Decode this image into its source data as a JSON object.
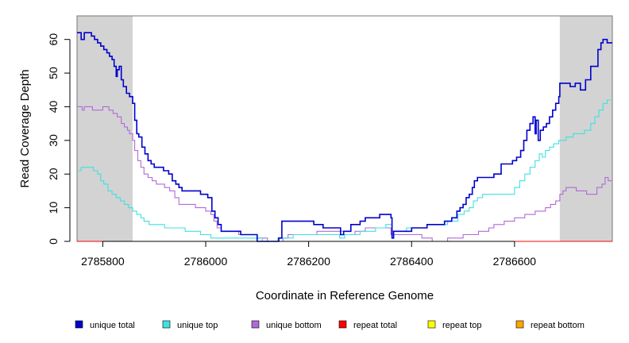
{
  "chart_data": {
    "type": "line",
    "xlabel": "Coordinate in Reference Genome",
    "ylabel": "Read Coverage Depth",
    "xlim": [
      2785750,
      2786790
    ],
    "ylim": [
      0,
      67
    ],
    "xticks": [
      2785800,
      2786000,
      2786200,
      2786400,
      2786600
    ],
    "xtick_labels": [
      "2785800",
      "2786000",
      "2786200",
      "2786400",
      "2786600"
    ],
    "yticks": [
      0,
      10,
      20,
      30,
      40,
      50,
      60
    ],
    "ytick_labels": [
      "0",
      "10",
      "20",
      "30",
      "40",
      "50",
      "60"
    ],
    "shaded_regions": [
      [
        2785750,
        2785858
      ],
      [
        2786688,
        2786790
      ]
    ],
    "shade_color": "#d3d3d3",
    "legend_position": "bottom",
    "series": [
      {
        "name": "unique total",
        "color": "#0000cd",
        "step": true,
        "points": [
          [
            2785750,
            62
          ],
          [
            2785758,
            60
          ],
          [
            2785764,
            62
          ],
          [
            2785778,
            61
          ],
          [
            2785784,
            60
          ],
          [
            2785790,
            59
          ],
          [
            2785796,
            58
          ],
          [
            2785802,
            57
          ],
          [
            2785808,
            56
          ],
          [
            2785813,
            55
          ],
          [
            2785818,
            54
          ],
          [
            2785822,
            52
          ],
          [
            2785826,
            49
          ],
          [
            2785828,
            51
          ],
          [
            2785832,
            52
          ],
          [
            2785836,
            48
          ],
          [
            2785840,
            46
          ],
          [
            2785846,
            44
          ],
          [
            2785852,
            43
          ],
          [
            2785858,
            41
          ],
          [
            2785862,
            36
          ],
          [
            2785866,
            32
          ],
          [
            2785870,
            31
          ],
          [
            2785876,
            28
          ],
          [
            2785882,
            26
          ],
          [
            2785888,
            24
          ],
          [
            2785894,
            23
          ],
          [
            2785900,
            22
          ],
          [
            2785918,
            21
          ],
          [
            2785928,
            20
          ],
          [
            2785935,
            18
          ],
          [
            2785942,
            17
          ],
          [
            2785948,
            16
          ],
          [
            2785954,
            15
          ],
          [
            2785990,
            14
          ],
          [
            2786004,
            13
          ],
          [
            2786012,
            9
          ],
          [
            2786018,
            7
          ],
          [
            2786024,
            5
          ],
          [
            2786030,
            3
          ],
          [
            2786068,
            2
          ],
          [
            2786100,
            0
          ],
          [
            2786142,
            1
          ],
          [
            2786148,
            6
          ],
          [
            2786210,
            5
          ],
          [
            2786228,
            4
          ],
          [
            2786262,
            2
          ],
          [
            2786268,
            3
          ],
          [
            2786282,
            5
          ],
          [
            2786300,
            6
          ],
          [
            2786310,
            7
          ],
          [
            2786338,
            8
          ],
          [
            2786360,
            7
          ],
          [
            2786362,
            1
          ],
          [
            2786365,
            3
          ],
          [
            2786400,
            4
          ],
          [
            2786430,
            5
          ],
          [
            2786464,
            6
          ],
          [
            2786478,
            7
          ],
          [
            2786488,
            9
          ],
          [
            2786494,
            10
          ],
          [
            2786500,
            11
          ],
          [
            2786506,
            13
          ],
          [
            2786512,
            14
          ],
          [
            2786518,
            16
          ],
          [
            2786522,
            18
          ],
          [
            2786528,
            19
          ],
          [
            2786560,
            20
          ],
          [
            2786574,
            23
          ],
          [
            2786596,
            24
          ],
          [
            2786604,
            25
          ],
          [
            2786612,
            27
          ],
          [
            2786618,
            30
          ],
          [
            2786624,
            33
          ],
          [
            2786630,
            35
          ],
          [
            2786636,
            37
          ],
          [
            2786640,
            32
          ],
          [
            2786642,
            36
          ],
          [
            2786646,
            30
          ],
          [
            2786650,
            33
          ],
          [
            2786656,
            34
          ],
          [
            2786662,
            35
          ],
          [
            2786668,
            37
          ],
          [
            2786674,
            39
          ],
          [
            2786680,
            41
          ],
          [
            2786686,
            43
          ],
          [
            2786688,
            47
          ],
          [
            2786708,
            46
          ],
          [
            2786718,
            47
          ],
          [
            2786728,
            45
          ],
          [
            2786738,
            48
          ],
          [
            2786748,
            52
          ],
          [
            2786762,
            57
          ],
          [
            2786768,
            59
          ],
          [
            2786772,
            60
          ],
          [
            2786780,
            59
          ],
          [
            2786790,
            59
          ]
        ]
      },
      {
        "name": "unique top",
        "color": "#40e0e0",
        "step": true,
        "points": [
          [
            2785750,
            21
          ],
          [
            2785758,
            22
          ],
          [
            2785782,
            21
          ],
          [
            2785790,
            20
          ],
          [
            2785796,
            18
          ],
          [
            2785802,
            17
          ],
          [
            2785810,
            15
          ],
          [
            2785818,
            14
          ],
          [
            2785826,
            13
          ],
          [
            2785834,
            12
          ],
          [
            2785842,
            11
          ],
          [
            2785850,
            10
          ],
          [
            2785858,
            9
          ],
          [
            2785866,
            8
          ],
          [
            2785874,
            7
          ],
          [
            2785880,
            6
          ],
          [
            2785890,
            5
          ],
          [
            2785920,
            4
          ],
          [
            2785960,
            3
          ],
          [
            2785990,
            2
          ],
          [
            2786010,
            1
          ],
          [
            2786110,
            0
          ],
          [
            2786140,
            1
          ],
          [
            2786170,
            2
          ],
          [
            2786260,
            1
          ],
          [
            2786270,
            2
          ],
          [
            2786300,
            3
          ],
          [
            2786330,
            4
          ],
          [
            2786350,
            5
          ],
          [
            2786362,
            3
          ],
          [
            2786390,
            4
          ],
          [
            2786430,
            5
          ],
          [
            2786470,
            6
          ],
          [
            2786490,
            8
          ],
          [
            2786502,
            9
          ],
          [
            2786512,
            10
          ],
          [
            2786520,
            12
          ],
          [
            2786528,
            13
          ],
          [
            2786538,
            14
          ],
          [
            2786600,
            16
          ],
          [
            2786610,
            18
          ],
          [
            2786620,
            20
          ],
          [
            2786630,
            22
          ],
          [
            2786640,
            24
          ],
          [
            2786648,
            26
          ],
          [
            2786654,
            25
          ],
          [
            2786660,
            27
          ],
          [
            2786668,
            28
          ],
          [
            2786676,
            29
          ],
          [
            2786686,
            30
          ],
          [
            2786700,
            31
          ],
          [
            2786714,
            32
          ],
          [
            2786736,
            33
          ],
          [
            2786748,
            35
          ],
          [
            2786756,
            37
          ],
          [
            2786764,
            39
          ],
          [
            2786772,
            41
          ],
          [
            2786780,
            42
          ],
          [
            2786790,
            42
          ]
        ]
      },
      {
        "name": "unique bottom",
        "color": "#b06ad8",
        "step": true,
        "points": [
          [
            2785750,
            40
          ],
          [
            2785760,
            39
          ],
          [
            2785764,
            40
          ],
          [
            2785780,
            39
          ],
          [
            2785800,
            40
          ],
          [
            2785812,
            39
          ],
          [
            2785820,
            38
          ],
          [
            2785828,
            37
          ],
          [
            2785836,
            35
          ],
          [
            2785842,
            34
          ],
          [
            2785848,
            33
          ],
          [
            2785852,
            32
          ],
          [
            2785858,
            30
          ],
          [
            2785862,
            27
          ],
          [
            2785868,
            24
          ],
          [
            2785874,
            22
          ],
          [
            2785880,
            20
          ],
          [
            2785888,
            19
          ],
          [
            2785896,
            18
          ],
          [
            2785904,
            17
          ],
          [
            2785920,
            16
          ],
          [
            2785930,
            15
          ],
          [
            2785940,
            13
          ],
          [
            2785948,
            11
          ],
          [
            2785980,
            10
          ],
          [
            2786000,
            9
          ],
          [
            2786010,
            8
          ],
          [
            2786016,
            6
          ],
          [
            2786022,
            4
          ],
          [
            2786030,
            3
          ],
          [
            2786064,
            2
          ],
          [
            2786100,
            1
          ],
          [
            2786120,
            0
          ],
          [
            2786150,
            1
          ],
          [
            2786160,
            2
          ],
          [
            2786216,
            3
          ],
          [
            2786268,
            2
          ],
          [
            2786290,
            3
          ],
          [
            2786310,
            4
          ],
          [
            2786360,
            2
          ],
          [
            2786400,
            2
          ],
          [
            2786420,
            1
          ],
          [
            2786440,
            0
          ],
          [
            2786470,
            1
          ],
          [
            2786500,
            2
          ],
          [
            2786530,
            3
          ],
          [
            2786550,
            4
          ],
          [
            2786560,
            5
          ],
          [
            2786580,
            6
          ],
          [
            2786600,
            7
          ],
          [
            2786620,
            8
          ],
          [
            2786640,
            9
          ],
          [
            2786660,
            10
          ],
          [
            2786670,
            11
          ],
          [
            2786680,
            12
          ],
          [
            2786688,
            14
          ],
          [
            2786694,
            15
          ],
          [
            2786700,
            16
          ],
          [
            2786720,
            15
          ],
          [
            2786740,
            14
          ],
          [
            2786760,
            16
          ],
          [
            2786770,
            17
          ],
          [
            2786776,
            19
          ],
          [
            2786782,
            18
          ],
          [
            2786790,
            18
          ]
        ]
      },
      {
        "name": "repeat total",
        "color": "#ff0000",
        "step": true,
        "points": [
          [
            2785750,
            0
          ],
          [
            2786790,
            0
          ]
        ]
      },
      {
        "name": "repeat top",
        "color": "#ffff00",
        "step": true,
        "points": [
          [
            2785750,
            0
          ],
          [
            2786790,
            0
          ]
        ]
      },
      {
        "name": "repeat bottom",
        "color": "#ffa500",
        "step": true,
        "points": [
          [
            2785750,
            0
          ],
          [
            2786790,
            0
          ]
        ]
      }
    ]
  }
}
